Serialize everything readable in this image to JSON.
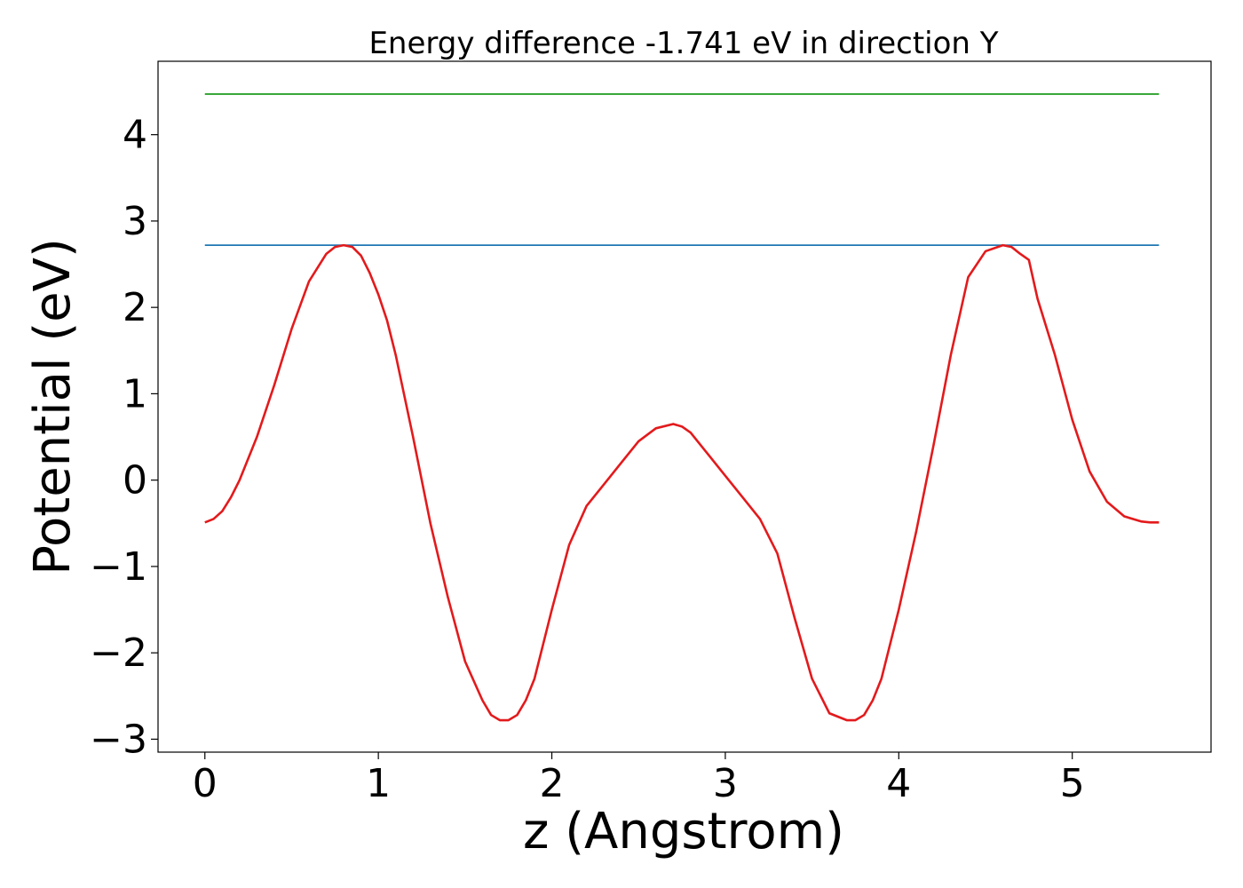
{
  "chart_data": {
    "type": "line",
    "title": "Energy difference -1.741 eV in direction Y",
    "xlabel": "z (Angstrom)",
    "ylabel": "Potential (eV)",
    "xlim": [
      -0.27,
      5.8
    ],
    "ylim": [
      -3.15,
      4.85
    ],
    "xticks": [
      0,
      1,
      2,
      3,
      4,
      5
    ],
    "yticks": [
      -3,
      -2,
      -1,
      0,
      1,
      2,
      3,
      4
    ],
    "grid": false,
    "series": [
      {
        "color": "#2ca02c",
        "x": [
          0,
          5.5
        ],
        "y": [
          4.47,
          4.47
        ]
      },
      {
        "color": "#1f77b4",
        "x": [
          0,
          5.5
        ],
        "y": [
          2.72,
          2.72
        ]
      },
      {
        "color": "#e31a1c",
        "x": [
          0,
          0.05,
          0.1,
          0.15,
          0.2,
          0.3,
          0.4,
          0.5,
          0.6,
          0.7,
          0.75,
          0.8,
          0.85,
          0.9,
          0.95,
          1.0,
          1.05,
          1.1,
          1.2,
          1.3,
          1.4,
          1.5,
          1.6,
          1.65,
          1.7,
          1.75,
          1.8,
          1.85,
          1.9,
          2.0,
          2.1,
          2.2,
          2.3,
          2.4,
          2.5,
          2.6,
          2.7,
          2.75,
          2.8,
          2.9,
          3.0,
          3.1,
          3.2,
          3.3,
          3.4,
          3.5,
          3.6,
          3.7,
          3.75,
          3.8,
          3.85,
          3.9,
          4.0,
          4.1,
          4.2,
          4.3,
          4.4,
          4.5,
          4.6,
          4.65,
          4.7,
          4.75,
          4.8,
          4.9,
          5.0,
          5.1,
          5.2,
          5.3,
          5.4,
          5.45,
          5.5
        ],
        "y": [
          -0.49,
          -0.45,
          -0.36,
          -0.2,
          0.0,
          0.5,
          1.1,
          1.75,
          2.3,
          2.62,
          2.7,
          2.72,
          2.7,
          2.6,
          2.4,
          2.15,
          1.85,
          1.45,
          0.5,
          -0.5,
          -1.35,
          -2.1,
          -2.55,
          -2.72,
          -2.78,
          -2.78,
          -2.72,
          -2.55,
          -2.3,
          -1.5,
          -0.75,
          -0.3,
          -0.05,
          0.2,
          0.45,
          0.6,
          0.65,
          0.62,
          0.55,
          0.3,
          0.05,
          -0.2,
          -0.45,
          -0.85,
          -1.6,
          -2.3,
          -2.7,
          -2.78,
          -2.78,
          -2.72,
          -2.55,
          -2.3,
          -1.5,
          -0.6,
          0.4,
          1.45,
          2.35,
          2.65,
          2.72,
          2.7,
          2.62,
          2.55,
          2.1,
          1.45,
          0.7,
          0.1,
          -0.25,
          -0.42,
          -0.48,
          -0.49,
          -0.49
        ]
      }
    ]
  }
}
